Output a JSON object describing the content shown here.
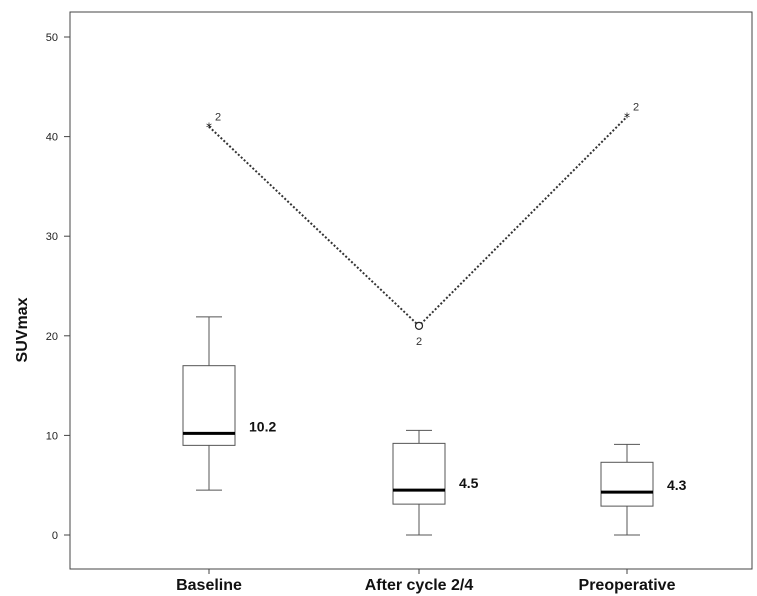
{
  "chart_data": {
    "type": "box",
    "ylabel": "SUVmax",
    "ylim": [
      0,
      50
    ],
    "yticks": [
      0,
      10,
      20,
      30,
      40,
      50
    ],
    "grid": false,
    "categories": [
      "Baseline",
      "After cycle 2/4",
      "Preoperative"
    ],
    "boxes": [
      {
        "category": "Baseline",
        "min": 4.5,
        "q1": 9.0,
        "median": 10.2,
        "q3": 17.0,
        "max": 21.9,
        "median_label": "10.2"
      },
      {
        "category": "After cycle 2/4",
        "min": 0.0,
        "q1": 3.1,
        "median": 4.5,
        "q3": 9.2,
        "max": 10.5,
        "median_label": "4.5"
      },
      {
        "category": "Preoperative",
        "min": 0.0,
        "q1": 2.9,
        "median": 4.3,
        "q3": 7.3,
        "max": 9.1,
        "median_label": "4.3"
      }
    ],
    "outliers": [
      {
        "category": "Baseline",
        "value": 41.0,
        "marker": "star",
        "label": "2"
      },
      {
        "category": "After cycle 2/4",
        "value": 21.0,
        "marker": "circle",
        "label": "2"
      },
      {
        "category": "Preoperative",
        "value": 42.0,
        "marker": "star",
        "label": "2"
      }
    ],
    "outlier_connection": "dotted"
  }
}
